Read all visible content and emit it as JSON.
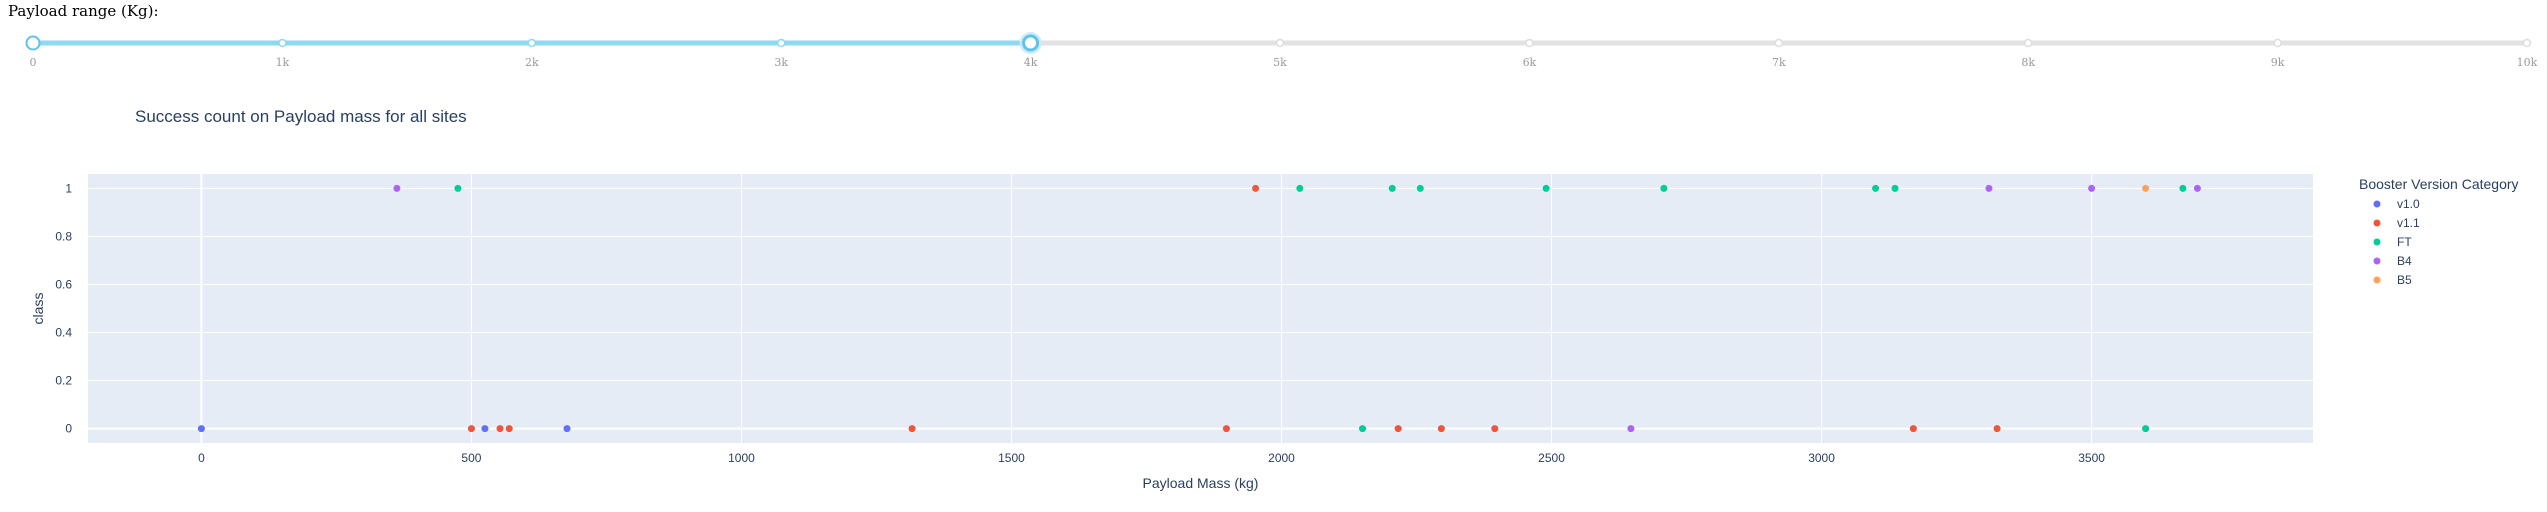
{
  "slider": {
    "label": "Payload range (Kg):",
    "min": 0,
    "max": 10000,
    "range": [
      0,
      4000
    ],
    "marks": [
      "0",
      "1k",
      "2k",
      "3k",
      "4k",
      "5k",
      "6k",
      "7k",
      "8k",
      "9k",
      "10k"
    ],
    "active_color": "#8fd8f0",
    "handle_color": "#5ec3ea",
    "track_color": "#e2e2e2"
  },
  "chart_data": {
    "type": "scatter",
    "title": "Success count on Payload mass for all sites",
    "xlabel": "Payload Mass (kg)",
    "ylabel": "class",
    "xlim": [
      -210,
      3910
    ],
    "ylim": [
      -0.06,
      1.06
    ],
    "xticks": [
      0,
      500,
      1000,
      1500,
      2000,
      2500,
      3000,
      3500
    ],
    "yticks": [
      0,
      0.2,
      0.4,
      0.6,
      0.8,
      1
    ],
    "grid": true,
    "legend_title": "Booster Version Category",
    "legend_position": "right",
    "series": [
      {
        "name": "v1.0",
        "color": "#636efa",
        "points": [
          [
            0,
            0
          ],
          [
            525,
            0
          ],
          [
            677,
            0
          ]
        ]
      },
      {
        "name": "v1.1",
        "color": "#ef553b",
        "points": [
          [
            500,
            0
          ],
          [
            553,
            0
          ],
          [
            570,
            0
          ],
          [
            1316,
            0
          ],
          [
            1898,
            0
          ],
          [
            1952,
            1
          ],
          [
            2216,
            0
          ],
          [
            2296,
            0
          ],
          [
            2395,
            0
          ],
          [
            3170,
            0
          ],
          [
            3325,
            0
          ]
        ]
      },
      {
        "name": "FT",
        "color": "#00cc96",
        "points": [
          [
            475,
            1
          ],
          [
            2034,
            1
          ],
          [
            2150,
            0
          ],
          [
            2205,
            1
          ],
          [
            2257,
            1
          ],
          [
            2490,
            1
          ],
          [
            2708,
            1
          ],
          [
            3100,
            1
          ],
          [
            3136,
            1
          ],
          [
            3600,
            0
          ],
          [
            3669,
            1
          ]
        ]
      },
      {
        "name": "B4",
        "color": "#ab63fa",
        "points": [
          [
            362,
            1
          ],
          [
            2647,
            0
          ],
          [
            3310,
            1
          ],
          [
            3500,
            1
          ],
          [
            3696,
            1
          ]
        ]
      },
      {
        "name": "B5",
        "color": "#ffa15a",
        "points": [
          [
            3600,
            1
          ]
        ]
      }
    ]
  }
}
